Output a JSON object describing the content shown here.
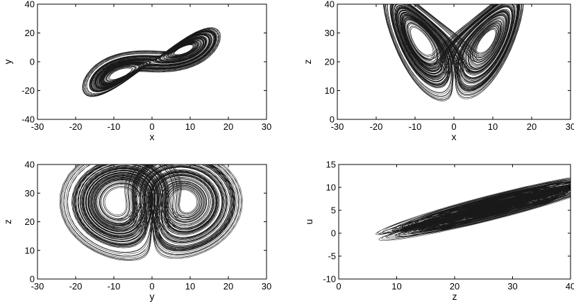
{
  "chart_data": [
    {
      "type": "line",
      "title": "",
      "xlabel": "x",
      "ylabel": "y",
      "xlim": [
        -30,
        30
      ],
      "ylim": [
        -40,
        40
      ],
      "xticks": [
        -30,
        -20,
        -10,
        0,
        10,
        20,
        30
      ],
      "yticks": [
        -40,
        -20,
        0,
        20,
        40
      ],
      "grid": false,
      "series_color": "#000000"
    },
    {
      "type": "line",
      "title": "",
      "xlabel": "x",
      "ylabel": "z",
      "xlim": [
        -30,
        30
      ],
      "ylim": [
        0,
        40
      ],
      "xticks": [
        -30,
        -20,
        -10,
        0,
        10,
        20,
        30
      ],
      "yticks": [
        0,
        10,
        20,
        30,
        40
      ],
      "grid": false,
      "series_color": "#000000"
    },
    {
      "type": "line",
      "title": "",
      "xlabel": "y",
      "ylabel": "z",
      "xlim": [
        -30,
        30
      ],
      "ylim": [
        0,
        40
      ],
      "xticks": [
        -30,
        -20,
        -10,
        0,
        10,
        20,
        30
      ],
      "yticks": [
        0,
        10,
        20,
        30,
        40
      ],
      "grid": false,
      "series_color": "#000000"
    },
    {
      "type": "line",
      "title": "",
      "xlabel": "z",
      "ylabel": "u",
      "xlim": [
        0,
        40
      ],
      "ylim": [
        -10,
        15
      ],
      "xticks": [
        0,
        10,
        20,
        30,
        40
      ],
      "yticks": [
        -10,
        -5,
        0,
        5,
        10,
        15
      ],
      "grid": false,
      "series_color": "#000000"
    }
  ]
}
